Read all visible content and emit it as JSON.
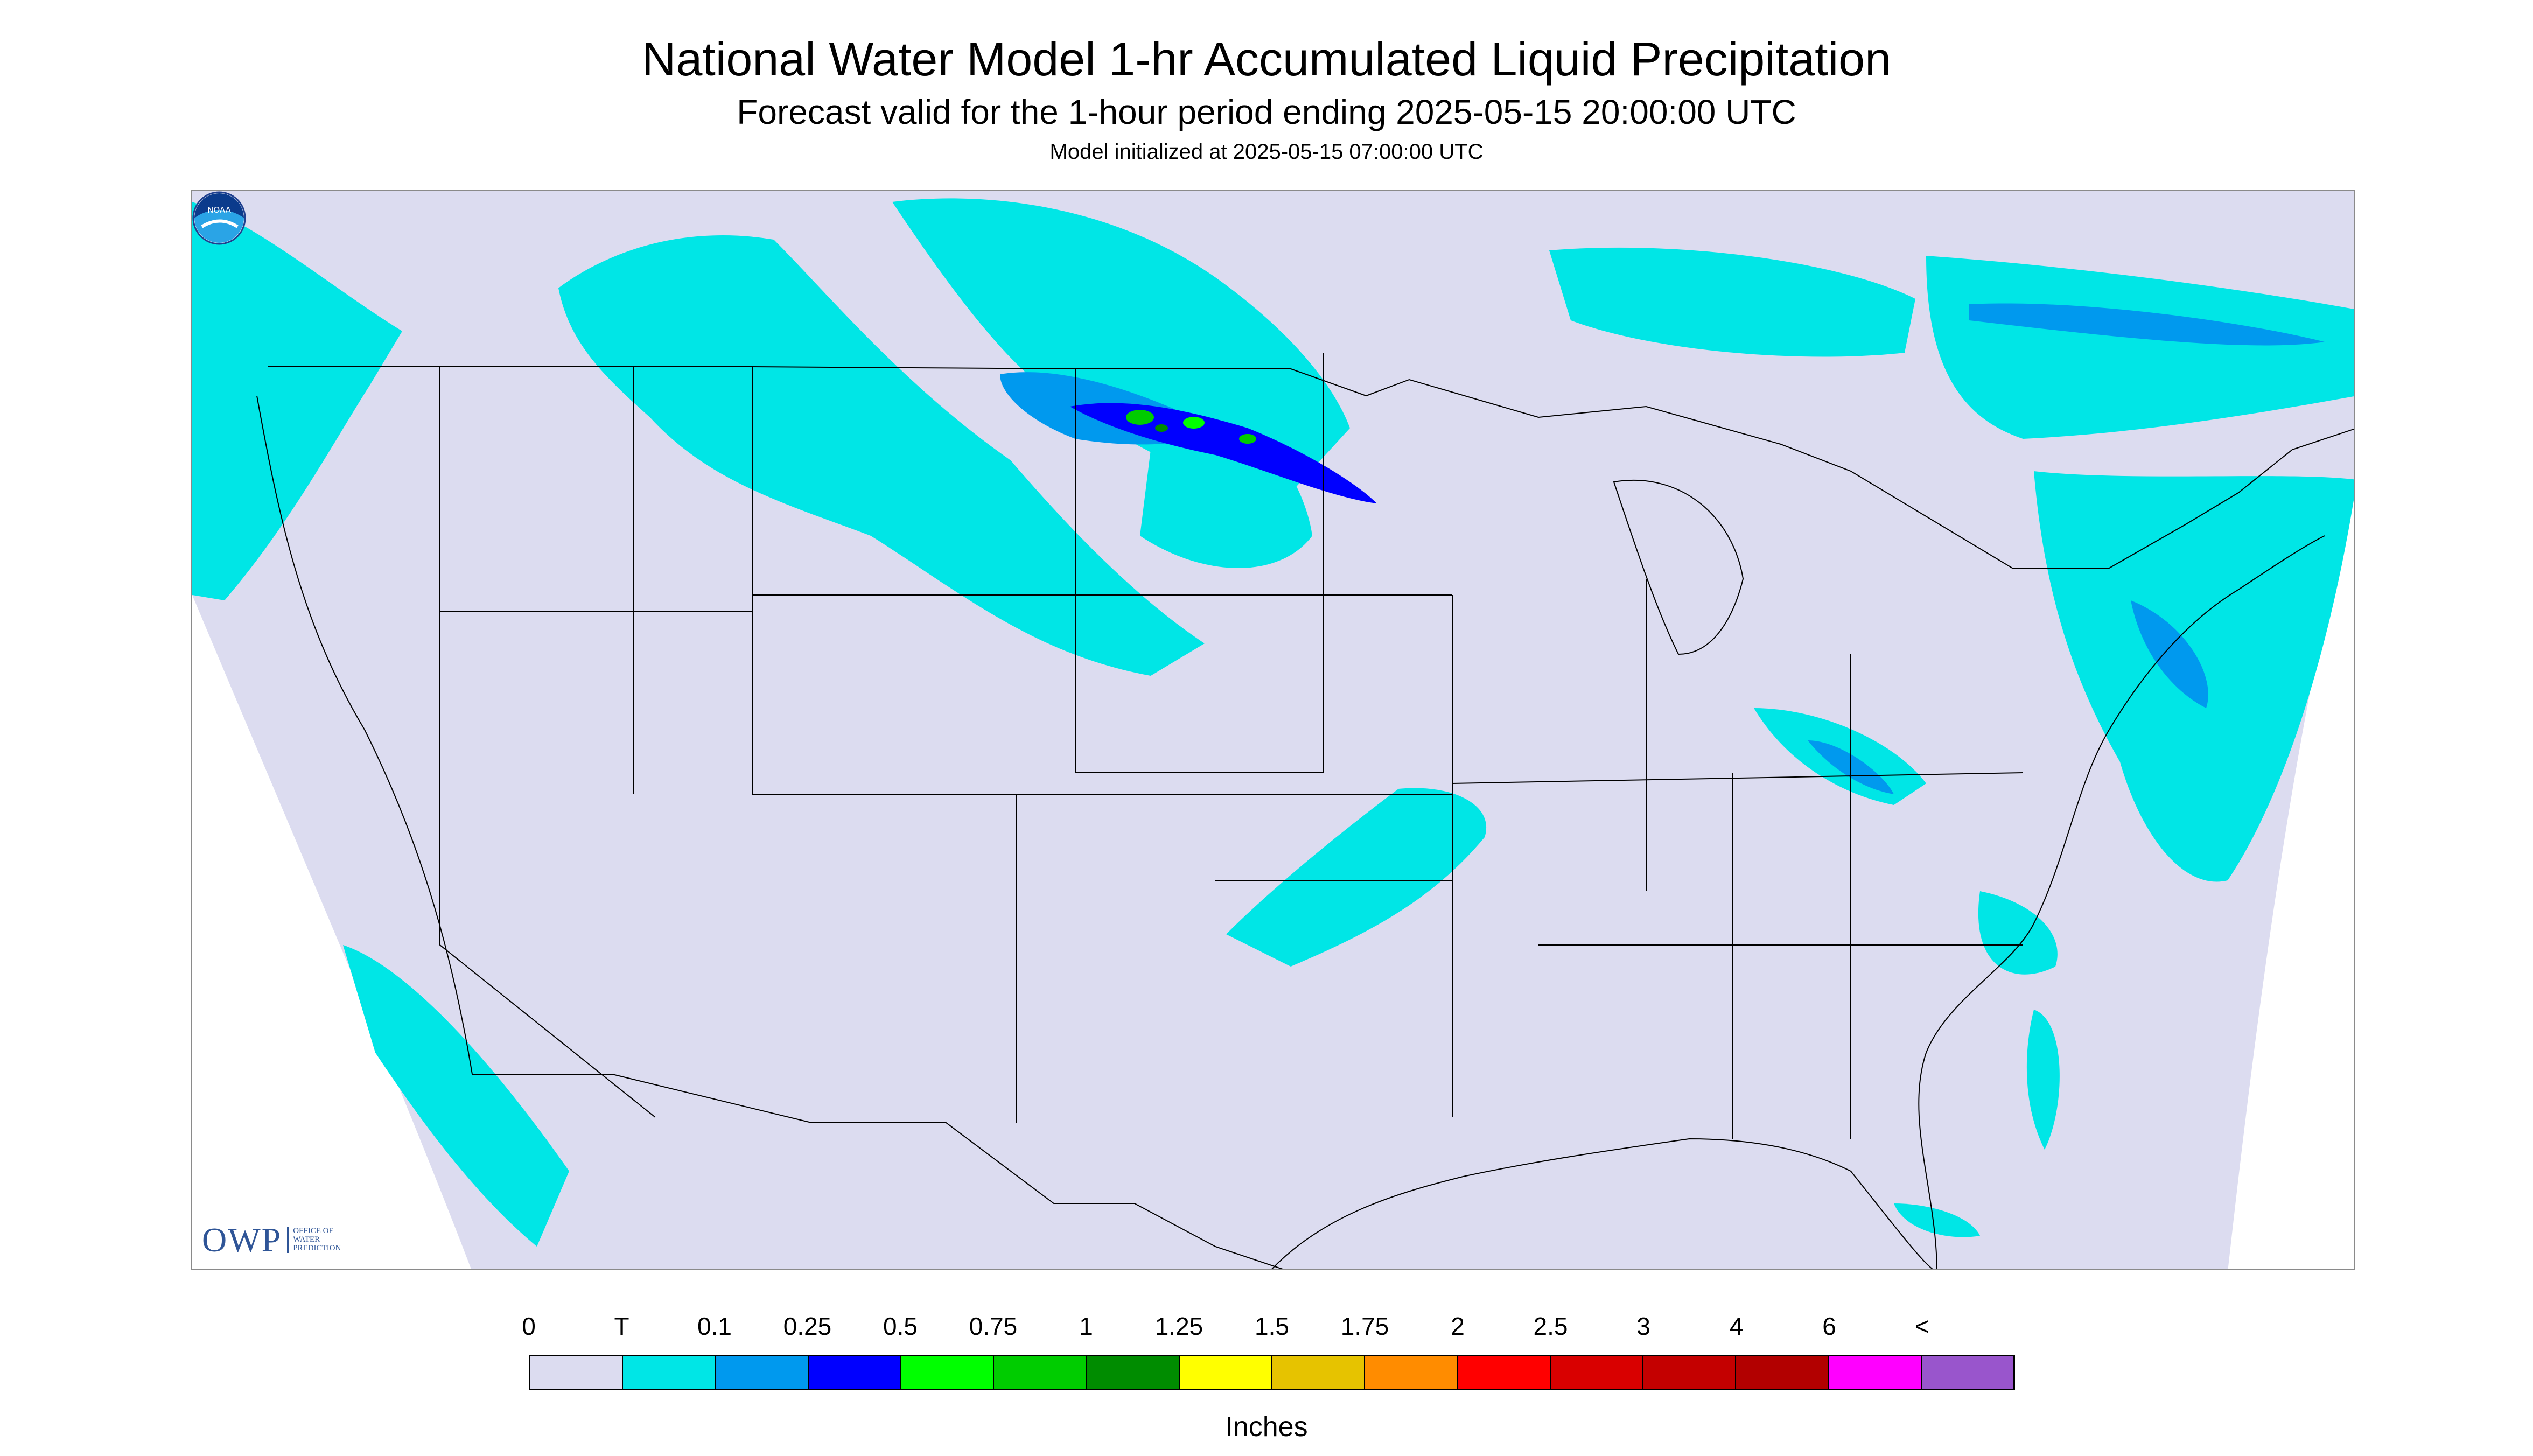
{
  "title": "National Water Model 1-hr Accumulated Liquid Precipitation",
  "subtitle": "Forecast valid for the 1-hour period ending 2025-05-15 20:00:00 UTC",
  "init_line": "Model initialized at 2025-05-15 07:00:00 UTC",
  "owp_logo": {
    "letters": "OWP",
    "lines": [
      "Office of",
      "Water",
      "Prediction"
    ]
  },
  "noaa_logo": {
    "icon": "noaa-logo-icon",
    "text": "NOAA"
  },
  "colors": {
    "background_outside_domain": "#ffffff",
    "no_precip": "#dcdcf0",
    "boundary_lines": "#000000",
    "frame": "#8a8a8a"
  },
  "legend": {
    "units": "Inches",
    "tick_labels": [
      "0",
      "T",
      "0.1",
      "0.25",
      "0.5",
      "0.75",
      "1",
      "1.25",
      "1.5",
      "1.75",
      "2",
      "2.5",
      "3",
      "4",
      "6",
      "<"
    ],
    "colors": [
      "#dcdcf0",
      "#00e6e6",
      "#0099ee",
      "#0000ff",
      "#00ff00",
      "#00cc00",
      "#008c00",
      "#ffff00",
      "#e6c300",
      "#ff8c00",
      "#ff0000",
      "#d90000",
      "#c40000",
      "#b20000",
      "#ff00ff",
      "#9955cc"
    ]
  }
}
